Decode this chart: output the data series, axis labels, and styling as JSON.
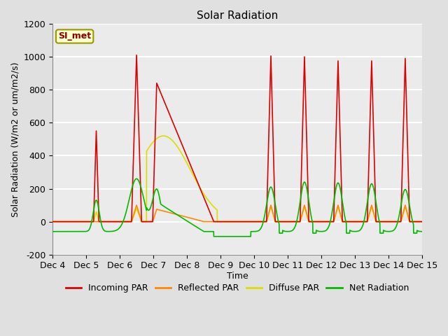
{
  "title": "Solar Radiation",
  "ylabel": "Solar Radiation (W/m2 or um/m2/s)",
  "xlabel": "Time",
  "ylim": [
    -200,
    1200
  ],
  "yticks": [
    -200,
    0,
    200,
    400,
    600,
    800,
    1000,
    1200
  ],
  "xtick_labels": [
    "Dec 4",
    "Dec 5",
    "Dec 6",
    "Dec 7",
    "Dec 8",
    "Dec 9",
    "Dec 10",
    "Dec 11",
    "Dec 12",
    "Dec 13",
    "Dec 14",
    "Dec 15"
  ],
  "annotation_text": "SI_met",
  "annotation_text_color": "#8B0000",
  "annotation_bg_color": "#FFFFCC",
  "annotation_border_color": "#999900",
  "line_colors": {
    "incoming": "#DD0000",
    "reflected": "#FF8800",
    "diffuse": "#DDDD00",
    "net": "#00BB00"
  },
  "line_labels": [
    "Incoming PAR",
    "Reflected PAR",
    "Diffuse PAR",
    "Net Radiation"
  ],
  "fig_bg_color": "#E0E0E0",
  "ax_bg_color": "#EBEBEB"
}
